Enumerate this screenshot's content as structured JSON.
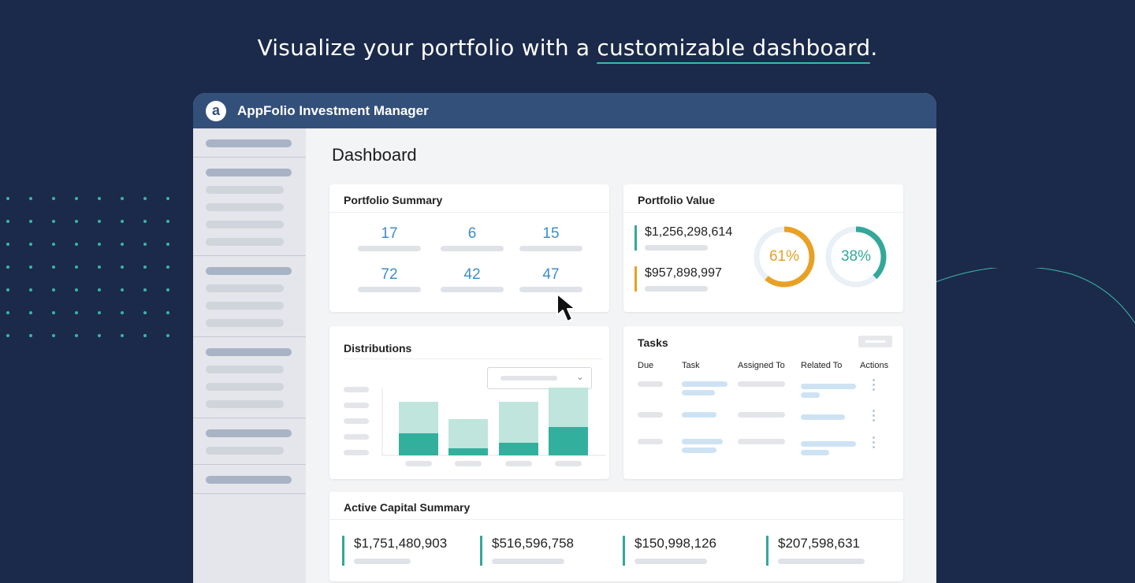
{
  "headline": {
    "prefix": "Visualize your portfolio with a ",
    "highlight": "customizable dashboard",
    "suffix": "."
  },
  "app": {
    "title": "AppFolio Investment Manager",
    "logo_letter": "a"
  },
  "page": {
    "title": "Dashboard"
  },
  "portfolio_summary": {
    "title": "Portfolio Summary",
    "values": [
      "17",
      "6",
      "15",
      "72",
      "42",
      "47"
    ]
  },
  "portfolio_value": {
    "title": "Portfolio Value",
    "amounts": [
      {
        "value": "$1,256,298,614",
        "color": "#33a899"
      },
      {
        "value": "$957,898,997",
        "color": "#e8a124"
      }
    ],
    "donuts": [
      {
        "label": "61%",
        "percent": 61,
        "color": "#e8a124"
      },
      {
        "label": "38%",
        "percent": 38,
        "color": "#33a899"
      }
    ]
  },
  "distributions": {
    "title": "Distributions",
    "bars": [
      {
        "light": 0.4,
        "dark": 0.28
      },
      {
        "light": 0.37,
        "dark": 0.09
      },
      {
        "light": 0.52,
        "dark": 0.16
      },
      {
        "light": 0.5,
        "dark": 0.36
      }
    ],
    "colors": {
      "light": "#bfe5dd",
      "dark": "#33b09d"
    }
  },
  "tasks": {
    "title": "Tasks",
    "columns": [
      "Due",
      "Task",
      "Assigned To",
      "Related To",
      "Actions"
    ]
  },
  "active_capital": {
    "title": "Active Capital Summary",
    "amounts": [
      "$1,751,480,903",
      "$516,596,758",
      "$150,998,126",
      "$207,598,631"
    ]
  },
  "sidebar": {
    "groups": [
      [
        true
      ],
      [
        true,
        false,
        false,
        false,
        false
      ],
      [
        true,
        false,
        false,
        false
      ],
      [
        true,
        false,
        false,
        false
      ],
      [
        true,
        false
      ],
      [
        true
      ]
    ]
  }
}
